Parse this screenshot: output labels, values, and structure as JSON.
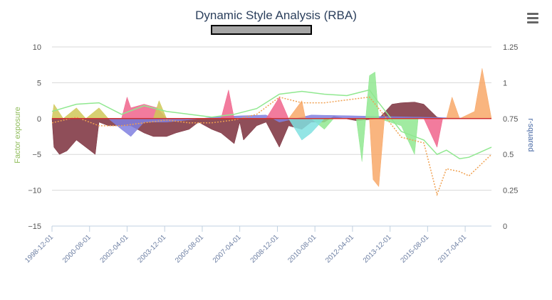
{
  "chart_data": {
    "type": "area",
    "title": "Dynamic Style Analysis (RBA)",
    "ylabel_left": "Factor exposure",
    "ylabel_right": "r-squared",
    "ylim_left": [
      -15,
      10
    ],
    "ylim_right": [
      0,
      1.25
    ],
    "yticks_left": [
      "10",
      "5",
      "0",
      "−5",
      "−10",
      "−15"
    ],
    "yticks_right": [
      "1.25",
      "1",
      "0.75",
      "0.5",
      "0.25",
      "0"
    ],
    "x_range": [
      "1998-12-01",
      "2018-06-01"
    ],
    "xticks": [
      "1998-12-01",
      "2000-08-01",
      "2002-04-01",
      "2003-12-01",
      "2005-08-01",
      "2007-04-01",
      "2008-12-01",
      "2010-08-01",
      "2012-04-01",
      "2013-12-01",
      "2015-08-01",
      "2017-04-01"
    ],
    "grid": true,
    "series": [
      {
        "color": "#7b2f3c",
        "values": [
          [
            "1998-12-01",
            0
          ],
          [
            "1999-01-01",
            -4
          ],
          [
            "1999-04-01",
            -5
          ],
          [
            "1999-08-01",
            -4.5
          ],
          [
            "2000-01-01",
            -3
          ],
          [
            "2000-06-01",
            -4
          ],
          [
            "2000-11-01",
            -5
          ],
          [
            "2001-01-01",
            -0.5
          ],
          [
            "2001-06-01",
            -1
          ],
          [
            "2002-06-01",
            -1
          ],
          [
            "2003-01-01",
            -2
          ],
          [
            "2003-06-01",
            -2.5
          ],
          [
            "2004-01-01",
            -2.5
          ],
          [
            "2004-06-01",
            -2
          ],
          [
            "2005-01-01",
            -1.5
          ],
          [
            "2005-06-01",
            -0.5
          ],
          [
            "2006-01-01",
            -1.5
          ],
          [
            "2006-06-01",
            -2
          ],
          [
            "2007-01-01",
            -3.5
          ],
          [
            "2007-04-01",
            -0.5
          ],
          [
            "2007-06-01",
            -3
          ],
          [
            "2008-01-01",
            -1
          ],
          [
            "2008-06-01",
            -0.5
          ],
          [
            "2009-01-01",
            -4
          ],
          [
            "2009-06-01",
            -1
          ],
          [
            "2010-01-01",
            -1.5
          ],
          [
            "2010-06-01",
            -0.5
          ],
          [
            "2011-01-01",
            -0.5
          ],
          [
            "2011-06-01",
            0.3
          ],
          [
            "2012-06-01",
            -0.3
          ],
          [
            "2013-06-01",
            0
          ],
          [
            "2014-01-01",
            2
          ],
          [
            "2014-06-01",
            2.2
          ],
          [
            "2015-01-01",
            2.3
          ],
          [
            "2015-06-01",
            2
          ],
          [
            "2016-01-01",
            0.2
          ],
          [
            "2016-06-01",
            0
          ],
          [
            "2017-01-01",
            0
          ],
          [
            "2017-06-01",
            0
          ],
          [
            "2018-06-01",
            0
          ]
        ]
      },
      {
        "color": "#8080e0",
        "values": [
          [
            "1998-12-01",
            0
          ],
          [
            "2001-06-01",
            0
          ],
          [
            "2002-01-01",
            -1.5
          ],
          [
            "2002-06-01",
            -2.5
          ],
          [
            "2003-01-01",
            -0.5
          ],
          [
            "2004-01-01",
            -0.5
          ],
          [
            "2006-06-01",
            0.3
          ],
          [
            "2008-06-01",
            0.5
          ],
          [
            "2009-01-01",
            -0.5
          ],
          [
            "2010-06-01",
            0.5
          ],
          [
            "2018-06-01",
            0
          ]
        ]
      },
      {
        "color": "#f0648c",
        "values": [
          [
            "1998-12-01",
            0
          ],
          [
            "2002-01-01",
            0
          ],
          [
            "2002-04-01",
            3
          ],
          [
            "2002-06-01",
            1.5
          ],
          [
            "2003-01-01",
            2
          ],
          [
            "2003-08-01",
            1.5
          ],
          [
            "2004-01-01",
            0
          ],
          [
            "2006-06-01",
            0
          ],
          [
            "2006-10-01",
            4
          ],
          [
            "2007-01-01",
            0
          ],
          [
            "2008-06-01",
            0
          ],
          [
            "2009-01-01",
            3
          ],
          [
            "2009-06-01",
            0
          ],
          [
            "2013-01-01",
            0
          ],
          [
            "2015-06-01",
            0
          ],
          [
            "2016-01-01",
            -4
          ],
          [
            "2016-04-01",
            0
          ],
          [
            "2018-06-01",
            0
          ]
        ]
      },
      {
        "color": "#90e890",
        "values": [
          [
            "1998-12-01",
            0
          ],
          [
            "2010-06-01",
            0
          ],
          [
            "2011-01-01",
            -1.5
          ],
          [
            "2011-06-01",
            0
          ],
          [
            "2012-06-01",
            0
          ],
          [
            "2012-09-01",
            -6
          ],
          [
            "2013-01-01",
            6
          ],
          [
            "2013-04-01",
            6.5
          ],
          [
            "2013-06-01",
            0
          ],
          [
            "2014-06-01",
            -1
          ],
          [
            "2015-01-01",
            -5
          ],
          [
            "2015-03-01",
            0
          ],
          [
            "2018-06-01",
            0
          ]
        ]
      },
      {
        "color": "#f8a868",
        "values": [
          [
            "1998-12-01",
            0
          ],
          [
            "2009-06-01",
            0
          ],
          [
            "2010-01-01",
            2.5
          ],
          [
            "2010-03-01",
            0
          ],
          [
            "2013-01-01",
            0
          ],
          [
            "2013-03-01",
            -8.5
          ],
          [
            "2013-06-01",
            -9.5
          ],
          [
            "2013-09-01",
            0
          ],
          [
            "2016-06-01",
            0
          ],
          [
            "2016-09-01",
            3
          ],
          [
            "2017-01-01",
            0
          ],
          [
            "2017-09-01",
            1
          ],
          [
            "2018-01-01",
            7
          ],
          [
            "2018-06-01",
            0
          ]
        ]
      },
      {
        "color": "#80e0e0",
        "values": [
          [
            "1998-12-01",
            0
          ],
          [
            "2009-06-01",
            0
          ],
          [
            "2010-01-01",
            -3
          ],
          [
            "2010-06-01",
            -2
          ],
          [
            "2011-01-01",
            0
          ],
          [
            "2018-06-01",
            0
          ]
        ]
      },
      {
        "color": "#d0c858",
        "values": [
          [
            "1998-12-01",
            0
          ],
          [
            "1999-01-01",
            2
          ],
          [
            "1999-06-01",
            0
          ],
          [
            "2000-01-01",
            1.5
          ],
          [
            "2000-06-01",
            0
          ],
          [
            "2001-01-01",
            1.5
          ],
          [
            "2001-06-01",
            0
          ],
          [
            "2003-06-01",
            0
          ],
          [
            "2003-09-01",
            2.5
          ],
          [
            "2004-01-01",
            0
          ],
          [
            "2018-06-01",
            0
          ]
        ]
      }
    ],
    "rsquared_lines": [
      {
        "style": "solid",
        "color": "#90e890",
        "values": [
          [
            "1998-12-01",
            0.8
          ],
          [
            "2000-01-01",
            0.85
          ],
          [
            "2001-01-01",
            0.86
          ],
          [
            "2002-01-01",
            0.78
          ],
          [
            "2003-01-01",
            0.84
          ],
          [
            "2004-01-01",
            0.8
          ],
          [
            "2005-01-01",
            0.78
          ],
          [
            "2006-01-01",
            0.76
          ],
          [
            "2007-01-01",
            0.78
          ],
          [
            "2008-01-01",
            0.82
          ],
          [
            "2009-01-01",
            0.92
          ],
          [
            "2010-01-01",
            0.94
          ],
          [
            "2011-01-01",
            0.92
          ],
          [
            "2012-01-01",
            0.91
          ],
          [
            "2013-01-01",
            0.95
          ],
          [
            "2013-06-01",
            0.86
          ],
          [
            "2014-06-01",
            0.66
          ],
          [
            "2015-06-01",
            0.6
          ],
          [
            "2016-01-01",
            0.5
          ],
          [
            "2016-06-01",
            0.53
          ],
          [
            "2017-01-01",
            0.47
          ],
          [
            "2017-06-01",
            0.48
          ],
          [
            "2018-06-01",
            0.55
          ]
        ]
      },
      {
        "style": "dotted",
        "color": "#f0a050",
        "values": [
          [
            "1998-12-01",
            0.72
          ],
          [
            "2000-01-01",
            0.76
          ],
          [
            "2001-01-01",
            0.7
          ],
          [
            "2002-01-01",
            0.7
          ],
          [
            "2003-01-01",
            0.72
          ],
          [
            "2004-01-01",
            0.74
          ],
          [
            "2005-01-01",
            0.72
          ],
          [
            "2006-01-01",
            0.72
          ],
          [
            "2007-01-01",
            0.74
          ],
          [
            "2008-01-01",
            0.78
          ],
          [
            "2009-01-01",
            0.9
          ],
          [
            "2010-01-01",
            0.86
          ],
          [
            "2011-01-01",
            0.86
          ],
          [
            "2012-01-01",
            0.88
          ],
          [
            "2013-01-01",
            0.9
          ],
          [
            "2013-06-01",
            0.82
          ],
          [
            "2014-06-01",
            0.62
          ],
          [
            "2015-06-01",
            0.58
          ],
          [
            "2016-01-01",
            0.22
          ],
          [
            "2016-06-01",
            0.4
          ],
          [
            "2017-01-01",
            0.38
          ],
          [
            "2017-06-01",
            0.35
          ],
          [
            "2018-06-01",
            0.5
          ]
        ]
      }
    ],
    "zero_line_color": "#d03030"
  },
  "ui": {
    "menu_icon": "hamburger-icon",
    "axis_title_left_color": "#8fbc5a",
    "axis_title_right_color": "#4a6aa5"
  }
}
